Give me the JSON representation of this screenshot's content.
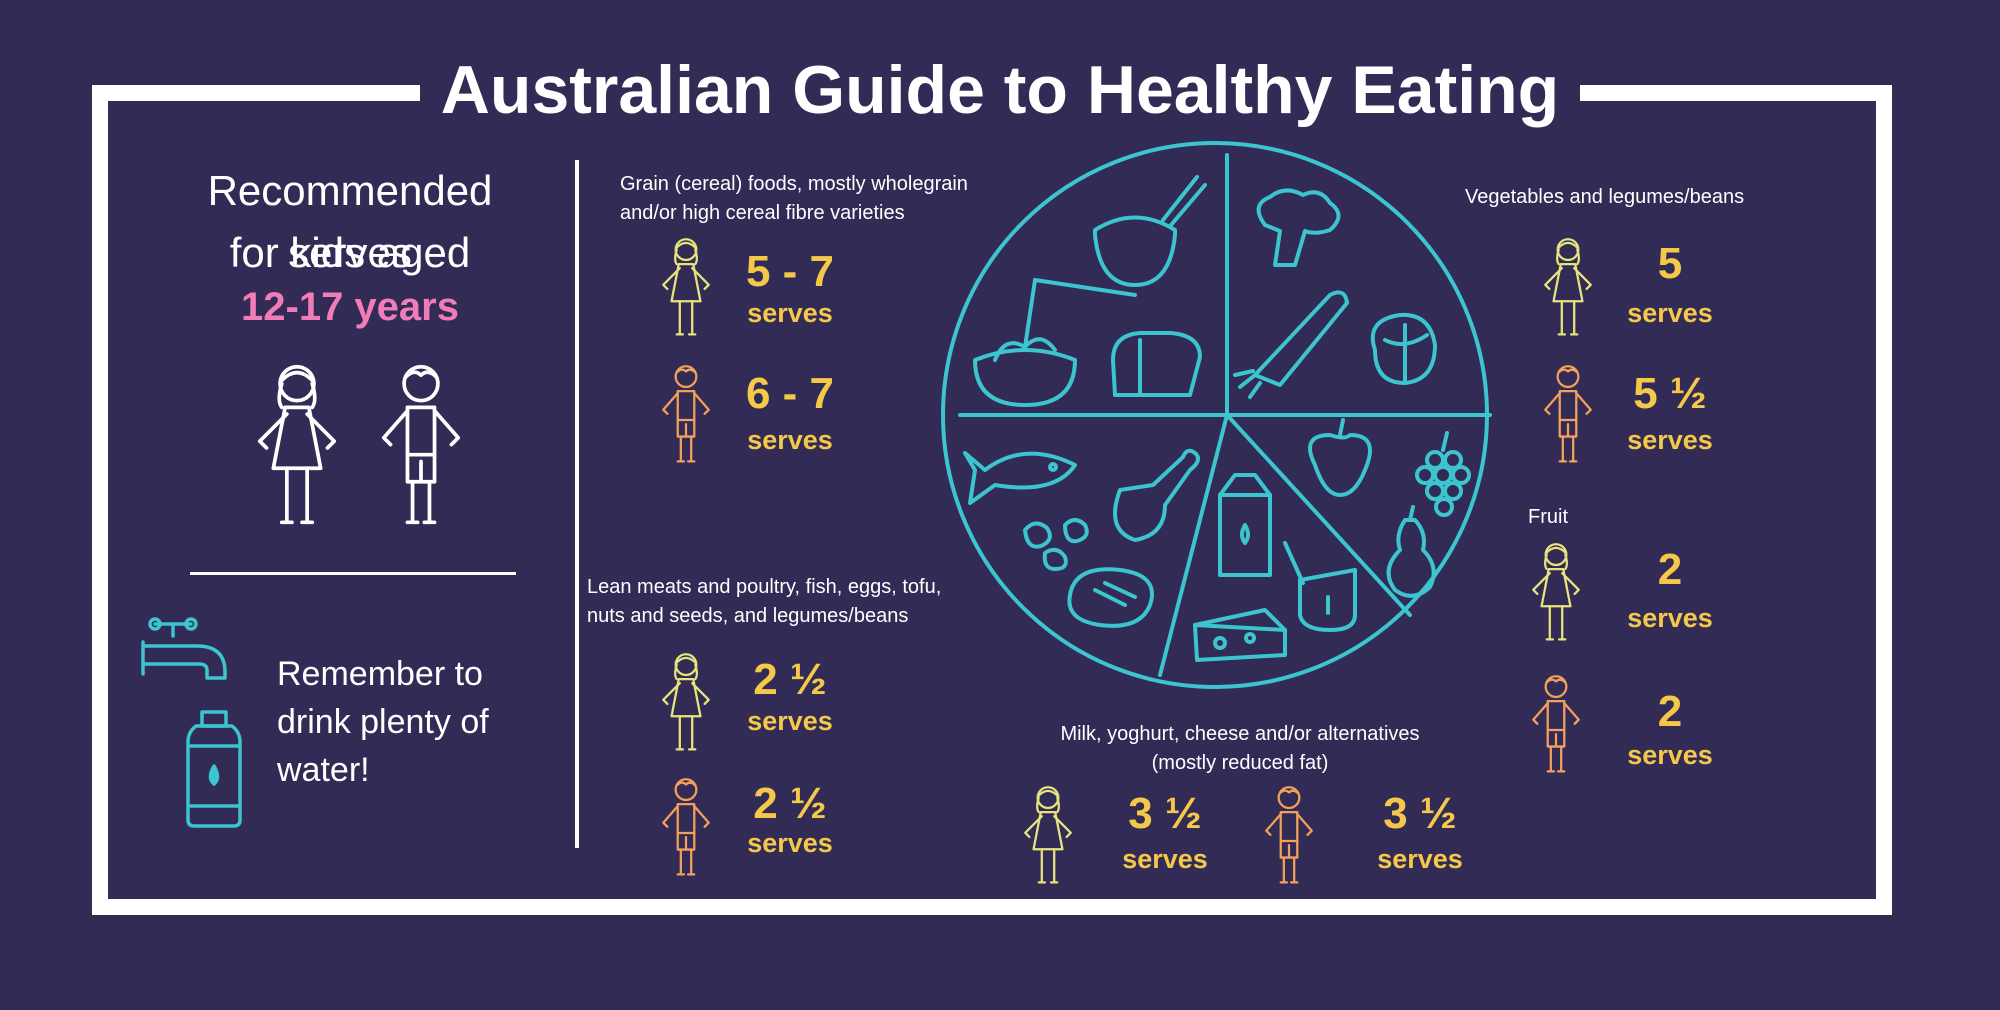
{
  "title": "Australian Guide to Healthy Eating",
  "intro": {
    "line1": "Recommended serves",
    "line2": "for kids aged",
    "age": "12-17 years"
  },
  "water": {
    "line1": "Remember to",
    "line2": "drink plenty of",
    "line3": "water!"
  },
  "serves_word": "serves",
  "groups": {
    "grain": {
      "label_line1": "Grain (cereal) foods, mostly wholegrain",
      "label_line2": "and/or high cereal fibre varieties",
      "girl": "5 - 7",
      "boy": "6 - 7"
    },
    "meat": {
      "label_line1": "Lean meats and poultry, fish, eggs, tofu,",
      "label_line2": "nuts and seeds, and legumes/beans",
      "girl": "2 ½",
      "boy": "2 ½"
    },
    "veg": {
      "label": "Vegetables and legumes/beans",
      "girl": "5",
      "boy": "5 ½"
    },
    "fruit": {
      "label": "Fruit",
      "girl": "2",
      "boy": "2"
    },
    "milk": {
      "label_line1": "Milk, yoghurt, cheese and/or alternatives",
      "label_line2": "(mostly reduced fat)",
      "girl": "3 ½",
      "boy": "3 ½"
    }
  },
  "colors": {
    "background": "#312b56",
    "girl": "#e8e47c",
    "boy": "#f2a05a",
    "serves": "#f5c84a",
    "age": "#f07cb8",
    "plate": "#3cc4cf",
    "frame": "#ffffff"
  }
}
